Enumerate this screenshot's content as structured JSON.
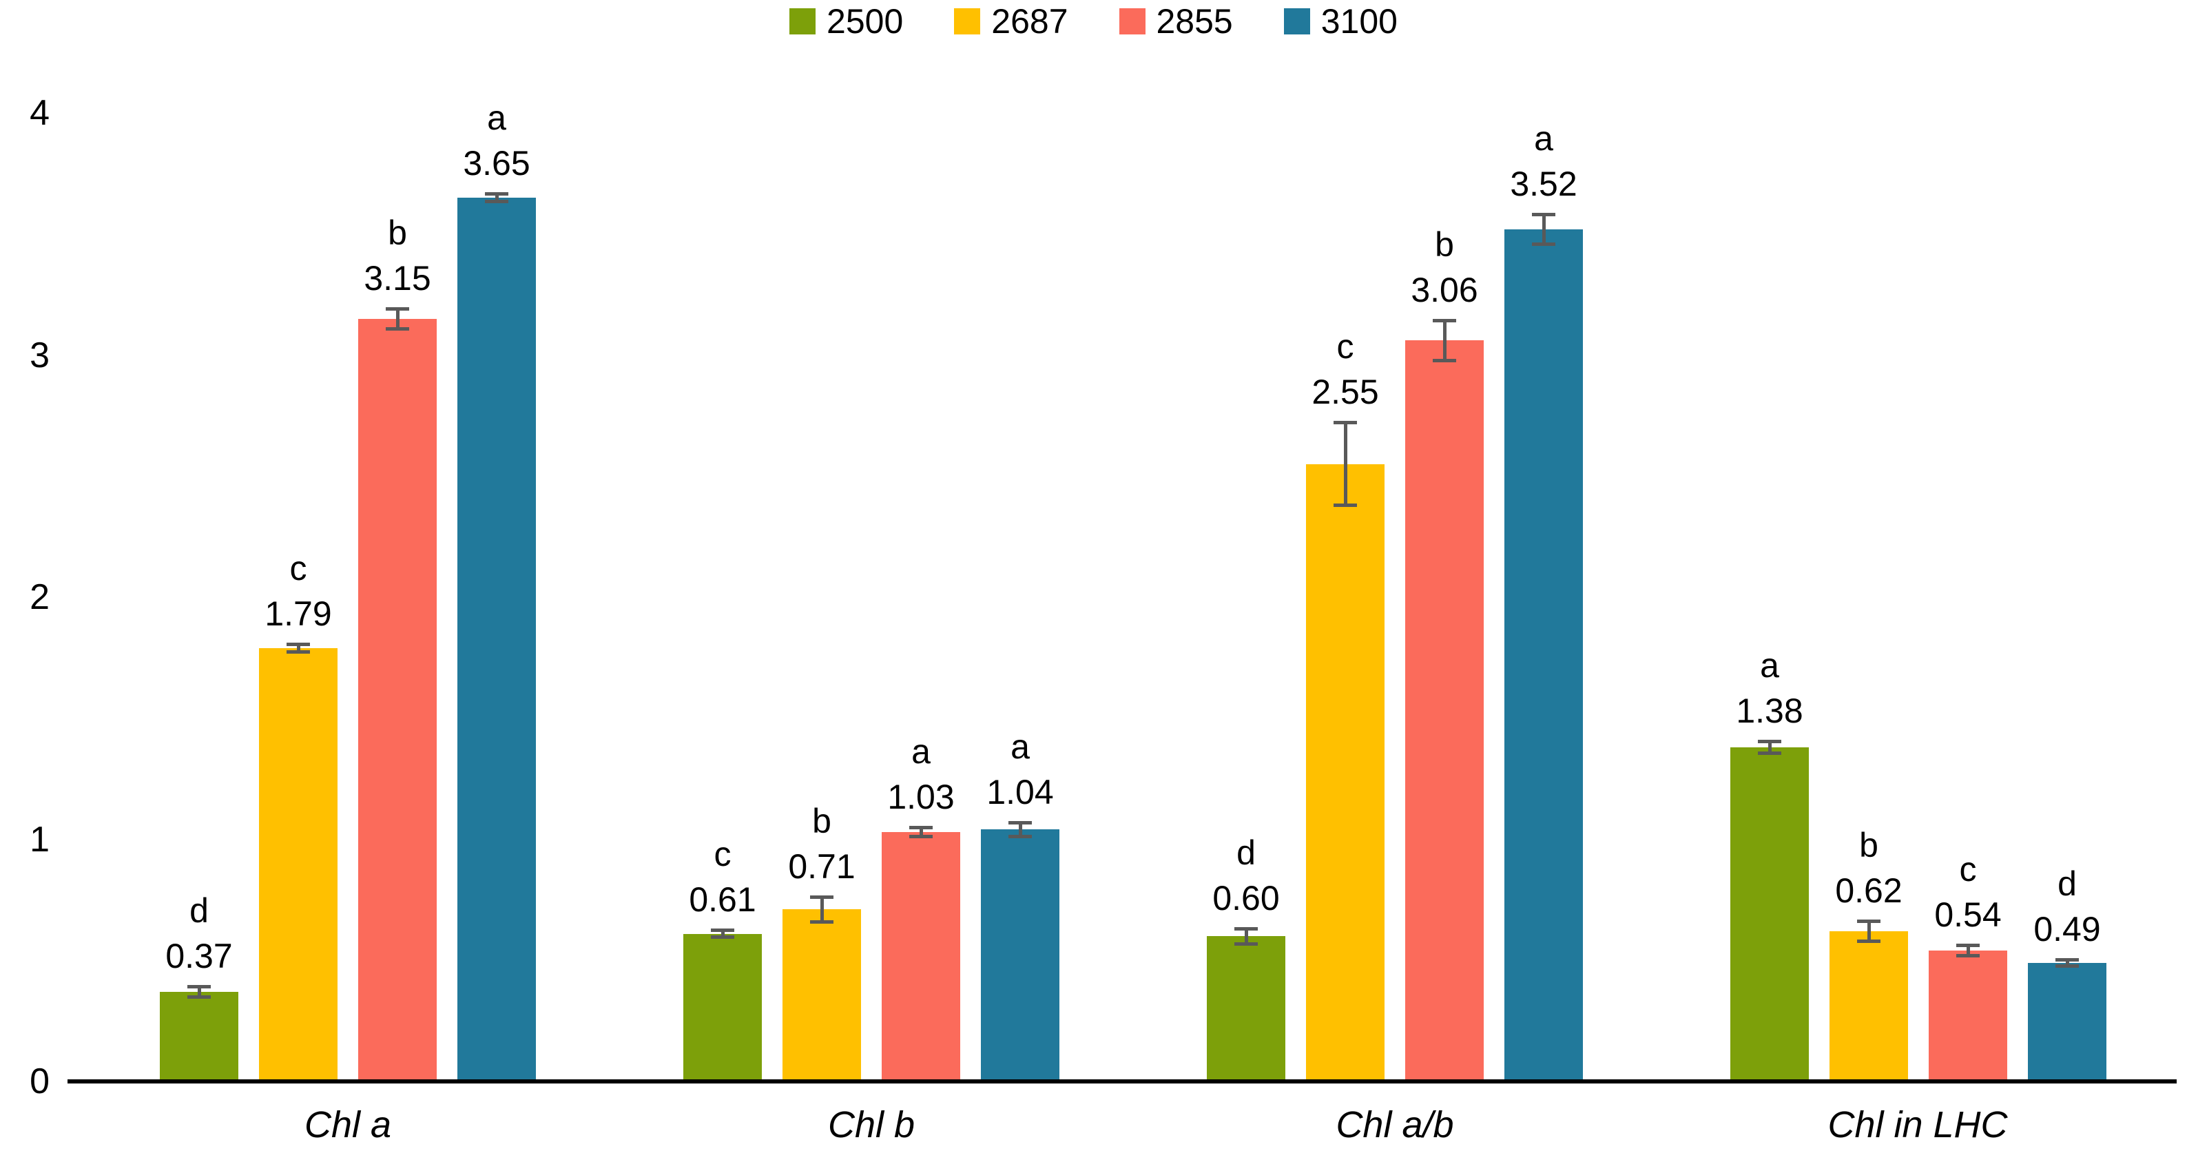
{
  "chart_data": {
    "type": "bar",
    "title": "",
    "xlabel": "",
    "ylabel": "",
    "categories": [
      "Chl a",
      "Chl b",
      "Chl a/b",
      "Chl in LHC"
    ],
    "series": [
      {
        "name": "2500",
        "color": "#7DA00A",
        "values": [
          0.37,
          0.61,
          0.6,
          1.38
        ],
        "value_labels": [
          "0.37",
          "0.61",
          "0.60",
          "1.38"
        ],
        "letters": [
          "d",
          "c",
          "d",
          "a"
        ],
        "errors": [
          0.02,
          0.012,
          0.03,
          0.023
        ]
      },
      {
        "name": "2687",
        "color": "#FFC000",
        "values": [
          1.79,
          0.71,
          2.55,
          0.62
        ],
        "value_labels": [
          "1.79",
          "0.71",
          "2.55",
          "0.62"
        ],
        "letters": [
          "c",
          "b",
          "c",
          "b"
        ],
        "errors": [
          0.014,
          0.05,
          0.17,
          0.04
        ]
      },
      {
        "name": "2855",
        "color": "#FB6B5B",
        "values": [
          3.15,
          1.03,
          3.06,
          0.54
        ],
        "value_labels": [
          "3.15",
          "1.03",
          "3.06",
          "0.54"
        ],
        "letters": [
          "b",
          "a",
          "b",
          "c"
        ],
        "errors": [
          0.04,
          0.018,
          0.08,
          0.02
        ]
      },
      {
        "name": "3100",
        "color": "#21799B",
        "values": [
          3.65,
          1.04,
          3.52,
          0.49
        ],
        "value_labels": [
          "3.65",
          "1.04",
          "3.52",
          "0.49"
        ],
        "letters": [
          "a",
          "a",
          "a",
          "d"
        ],
        "errors": [
          0.014,
          0.028,
          0.06,
          0.012
        ]
      }
    ],
    "y_axis": {
      "min": 0,
      "max": 4,
      "ticks": [
        "4",
        "3",
        "2",
        "1",
        "0"
      ]
    },
    "legend_position": "top-center",
    "grid": false,
    "error_bar_color": "#595959"
  }
}
